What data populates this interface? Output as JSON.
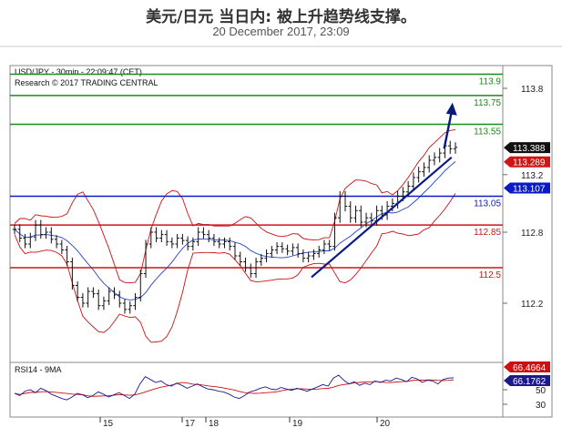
{
  "title": "美元/日元 当日内: 被上升趋势线支撑。",
  "date": "20 December 2017, 23:09",
  "colors": {
    "resistance": "#1a8c1a",
    "support": "#d01515",
    "pivot": "#0a1ac8",
    "trendline": "#0a1a8c",
    "price_badge": "#111111",
    "arrow": "#0a1a7a",
    "band": "#cc1111",
    "ma_line": "#2244cc",
    "rsi_line": "#1a1a8c",
    "rsi_ma": "#cc1111"
  },
  "chart_data": [
    {
      "type": "line",
      "chart_style": "ohlc-bars",
      "header": [
        "USD/JPY - 30min - 22:09:47 (CET)",
        "Research © 2017 TRADING CENTRAL"
      ],
      "y_ticks": [
        113.8,
        113.2,
        112.8,
        112.2
      ],
      "x_ticks": [
        "15",
        "17",
        "18",
        "19",
        "20"
      ],
      "ylim": [
        112.0,
        114.0
      ],
      "levels": [
        {
          "value": 113.9,
          "label": "113.9",
          "kind": "resistance"
        },
        {
          "value": 113.75,
          "label": "113.75",
          "kind": "resistance"
        },
        {
          "value": 113.55,
          "label": "113.55",
          "kind": "resistance"
        },
        {
          "value": 113.05,
          "label": "113.05",
          "kind": "pivot"
        },
        {
          "value": 112.85,
          "label": "112.85",
          "kind": "support"
        },
        {
          "value": 112.5,
          "label": "112.5",
          "kind": "support"
        }
      ],
      "price_badges": [
        {
          "value": 113.388,
          "label": "113.388",
          "kind": "price"
        },
        {
          "value": 113.289,
          "label": "113.289",
          "kind": "support"
        },
        {
          "value": 113.107,
          "label": "113.107",
          "kind": "pivot"
        }
      ],
      "trendline": {
        "from": [
          19.25,
          112.42
        ],
        "to": [
          20.8,
          113.32
        ]
      },
      "projection_arrow": {
        "from": [
          20.72,
          113.38
        ],
        "to": [
          20.8,
          113.7
        ]
      },
      "price_series": [
        112.82,
        112.75,
        112.7,
        112.76,
        112.85,
        112.78,
        112.8,
        112.74,
        112.7,
        112.65,
        112.55,
        112.35,
        112.25,
        112.2,
        112.3,
        112.28,
        112.18,
        112.22,
        112.3,
        112.27,
        112.2,
        112.15,
        112.18,
        112.25,
        112.45,
        112.7,
        112.8,
        112.75,
        112.78,
        112.72,
        112.7,
        112.75,
        112.73,
        112.68,
        112.72,
        112.8,
        112.78,
        112.75,
        112.72,
        112.7,
        112.72,
        112.68,
        112.6,
        112.55,
        112.5,
        112.45,
        112.55,
        112.58,
        112.62,
        112.65,
        112.68,
        112.66,
        112.64,
        112.67,
        112.62,
        112.58,
        112.6,
        112.62,
        112.65,
        112.7,
        112.68,
        112.9,
        113.05,
        112.98,
        112.9,
        112.95,
        112.87,
        112.9,
        112.88,
        112.95,
        112.92,
        112.98,
        113.0,
        113.05,
        113.08,
        113.12,
        113.18,
        113.22,
        113.25,
        113.3,
        113.32,
        113.35,
        113.4,
        113.38,
        113.39
      ]
    },
    {
      "type": "line",
      "title": "RSI14 - 9MA",
      "y_ticks": [
        50,
        30
      ],
      "ylim": [
        20,
        80
      ],
      "badges": [
        {
          "value": 66.4664,
          "label": "66.4664",
          "kind": "ma"
        },
        {
          "value": 66.1762,
          "label": "66.1762",
          "kind": "rsi"
        }
      ],
      "rsi_series": [
        45,
        42,
        48,
        50,
        46,
        52,
        49,
        44,
        41,
        38,
        36,
        40,
        45,
        43,
        39,
        42,
        47,
        44,
        40,
        43,
        46,
        42,
        38,
        44,
        58,
        68,
        64,
        60,
        62,
        57,
        55,
        59,
        56,
        52,
        55,
        58,
        54,
        51,
        50,
        48,
        47,
        44,
        40,
        38,
        42,
        47,
        49,
        52,
        54,
        51,
        50,
        53,
        51,
        49,
        52,
        50,
        48,
        51,
        54,
        57,
        55,
        66,
        70,
        63,
        58,
        61,
        56,
        59,
        57,
        62,
        60,
        63,
        62,
        66,
        64,
        61,
        67,
        65,
        60,
        63,
        62,
        58,
        64,
        66,
        66.2
      ]
    }
  ]
}
